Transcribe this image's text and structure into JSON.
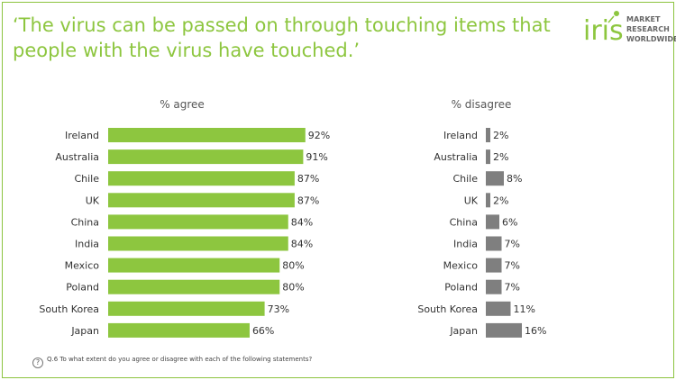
{
  "title": "‘The virus can be passed on through touching items that people with the virus have touched.’",
  "logo": {
    "brand": "iris",
    "lines": [
      "MARKET",
      "RESEARCH",
      "WORLDWIDE"
    ],
    "brand_color": "#8dc63f"
  },
  "footer": {
    "question": "Q.6 To what extent do you agree or disagree with each of the following statements?",
    "icon": "question-mark-icon",
    "icon_glyph": "?"
  },
  "chart_data": [
    {
      "type": "bar",
      "orientation": "horizontal",
      "title": "% agree",
      "categories": [
        "Ireland",
        "Australia",
        "Chile",
        "UK",
        "China",
        "India",
        "Mexico",
        "Poland",
        "South Korea",
        "Japan"
      ],
      "values": [
        92,
        91,
        87,
        87,
        84,
        84,
        80,
        80,
        73,
        66
      ],
      "labels": [
        "92%",
        "91%",
        "87%",
        "87%",
        "84%",
        "84%",
        "80%",
        "80%",
        "73%",
        "66%"
      ],
      "color": "#8dc63f",
      "xlim": [
        0,
        100
      ],
      "grid": false
    },
    {
      "type": "bar",
      "orientation": "horizontal",
      "title": "% disagree",
      "categories": [
        "Ireland",
        "Australia",
        "Chile",
        "UK",
        "China",
        "India",
        "Mexico",
        "Poland",
        "South Korea",
        "Japan"
      ],
      "values": [
        2,
        2,
        8,
        2,
        6,
        7,
        7,
        7,
        11,
        16
      ],
      "labels": [
        "2%",
        "2%",
        "8%",
        "2%",
        "6%",
        "7%",
        "7%",
        "7%",
        "11%",
        "16%"
      ],
      "color": "#7f7f7f",
      "xlim": [
        0,
        100
      ],
      "grid": false
    }
  ]
}
